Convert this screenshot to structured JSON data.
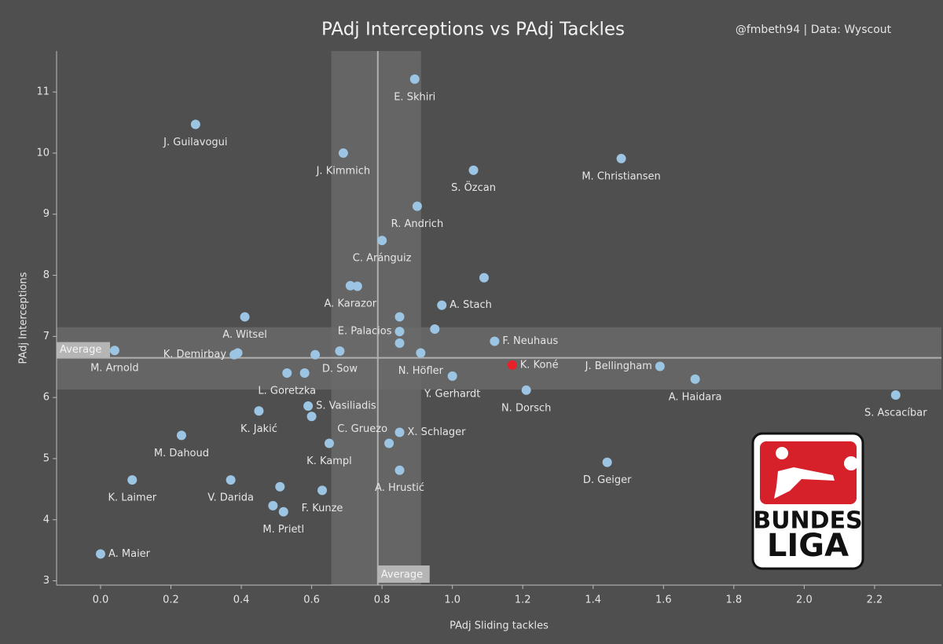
{
  "chart_data": {
    "type": "scatter",
    "title": "PAdj Interceptions vs PAdj Tackles",
    "subtitle": "@fmbeth94 | Data: Wyscout",
    "x_label": "PAdj Sliding tackles",
    "y_label": "PAdj Interceptions",
    "xlim": [
      -0.125,
      2.39
    ],
    "ylim": [
      2.93,
      11.67
    ],
    "xticks": [
      {
        "value": 0,
        "label": "0.0"
      },
      0.2,
      0.4,
      0.6,
      0.8,
      {
        "value": 1,
        "label": "1.0"
      },
      1.2,
      1.4,
      1.6,
      1.8,
      {
        "value": 2,
        "label": "2.0"
      },
      2.2
    ],
    "yticks": [
      3,
      4,
      5,
      6,
      7,
      8,
      9,
      10,
      11
    ],
    "color": "#9cc5e4",
    "highlight": "K. Koné",
    "highlight_color": "#e8202a",
    "x": [
      0.893,
      0.27,
      0.69,
      1.06,
      1.48,
      0.9,
      0.8,
      1.09,
      0.71,
      0.73,
      0.97,
      0.41,
      0.85,
      0.85,
      0.95,
      0.85,
      1.12,
      0.04,
      0.38,
      0.39,
      0.61,
      0.68,
      0.91,
      1.17,
      1.59,
      1.0,
      1.69,
      2.26,
      0.53,
      0.58,
      1.21,
      0.59,
      0.6,
      0.45,
      0.85,
      0.82,
      0.65,
      0.23,
      1.44,
      0.85,
      0.09,
      0.37,
      0.51,
      0.63,
      0.49,
      0.52,
      0.0
    ],
    "values": [
      11.21,
      10.47,
      10.0,
      9.72,
      9.91,
      9.13,
      8.57,
      7.96,
      7.83,
      7.82,
      7.51,
      7.32,
      7.32,
      7.08,
      7.12,
      6.89,
      6.92,
      6.77,
      6.7,
      6.73,
      6.7,
      6.76,
      6.73,
      6.53,
      6.51,
      6.35,
      6.3,
      6.04,
      6.4,
      6.4,
      6.12,
      5.86,
      5.69,
      5.78,
      5.43,
      5.25,
      5.25,
      5.38,
      4.94,
      4.81,
      4.65,
      4.65,
      4.54,
      4.48,
      4.23,
      4.13,
      3.44
    ],
    "labels": [
      "E. Skhiri",
      "J. Guilavogui",
      "J. Kimmich",
      "S. Özcan",
      "M. Christiansen",
      "R. Andrich",
      "C. Aránguiz",
      null,
      "A. Karazor",
      null,
      "A. Stach",
      "A. Witsel",
      null,
      "E. Palacios",
      null,
      null,
      "F. Neuhaus",
      "M. Arnold",
      "K. Demirbay",
      null,
      null,
      "D. Sow",
      "N. Höfler",
      "K. Koné",
      "J. Bellingham",
      "Y. Gerhardt",
      "A. Haidara",
      "S. Ascacíbar",
      "L. Goretzka",
      null,
      "N. Dorsch",
      "S. Vasiliadis",
      null,
      "K. Jakić",
      "X. Schlager",
      "C. Gruezo",
      "K. Kampl",
      "M. Dahoud",
      "D. Geiger",
      "A. Hrustić",
      "K. Laimer",
      "V. Darida",
      null,
      "F. Kunze",
      null,
      "M. Prietl",
      "A. Maier"
    ],
    "x_average": {
      "value": 0.788,
      "band": [
        0.656,
        0.911
      ],
      "label": "Average"
    },
    "y_average": {
      "value": 6.65,
      "band": [
        6.13,
        7.15
      ],
      "label": "Average"
    },
    "logo": {
      "lines": [
        "BUNDES",
        "LIGA"
      ]
    }
  }
}
